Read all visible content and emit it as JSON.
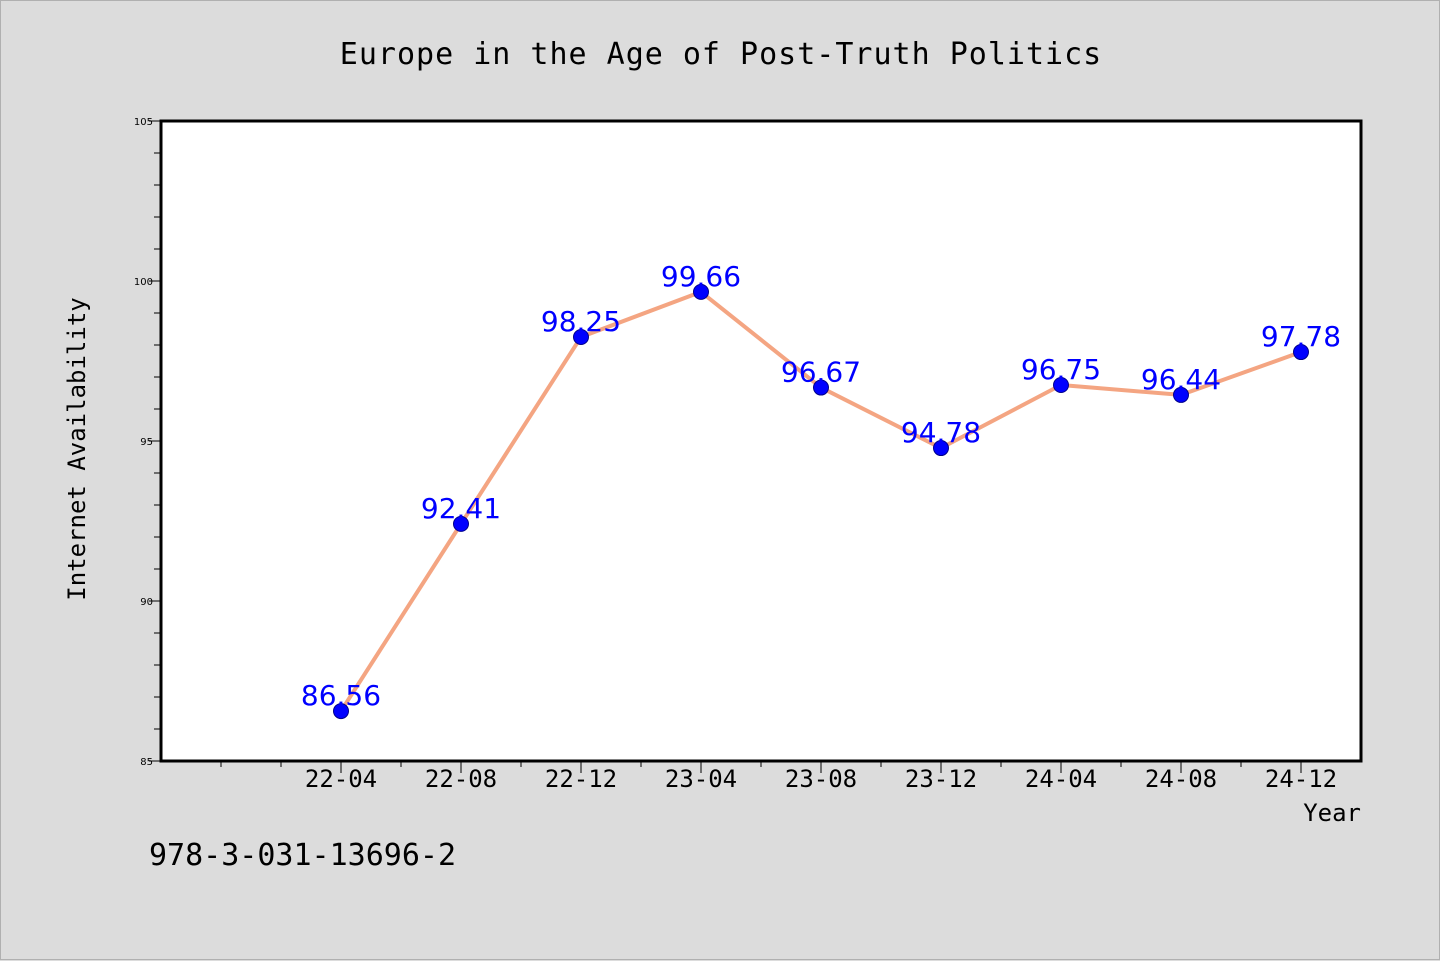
{
  "chart_data": {
    "type": "line",
    "title": "Europe in the Age of Post-Truth Politics",
    "xlabel": "Year",
    "ylabel": "Internet Availability",
    "categories": [
      "22-04",
      "22-08",
      "22-12",
      "23-04",
      "23-08",
      "23-12",
      "24-04",
      "24-08",
      "24-12"
    ],
    "series": [
      {
        "values": [
          86.56,
          92.41,
          98.25,
          99.66,
          96.67,
          94.78,
          96.75,
          96.44,
          97.78
        ],
        "line_color": "#f4a582",
        "marker_color": "#0000ff"
      }
    ],
    "data_labels": [
      "86.56",
      "92.41",
      "98.25",
      "99.66",
      "96.67",
      "94.78",
      "96.75",
      "96.44",
      "97.78"
    ],
    "ylim": [
      85,
      105
    ],
    "yticks": [
      "85",
      "90",
      "95",
      "100",
      "105"
    ],
    "grid": false,
    "label_color": "#0000ff"
  },
  "footer": {
    "isbn": "978-3-031-13696-2"
  }
}
